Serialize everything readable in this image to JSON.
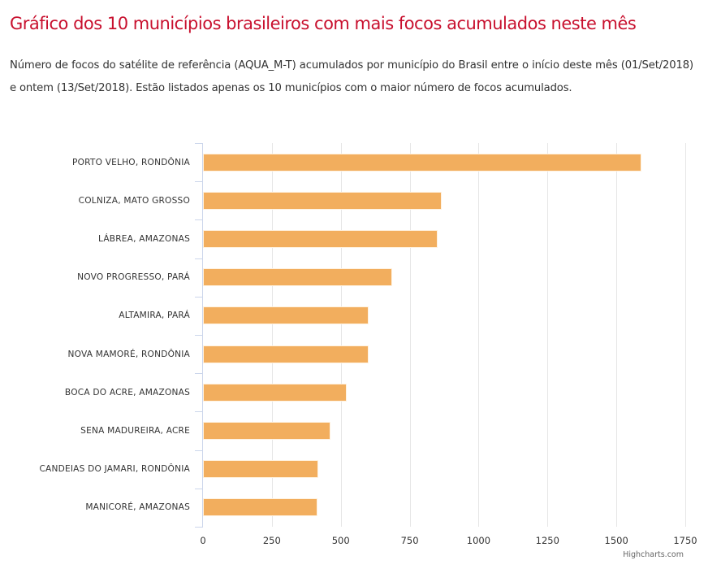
{
  "header": {
    "title": "Gráfico dos 10 municípios brasileiros com mais focos acumulados neste mês",
    "description": "Número de focos do satélite de referência (AQUA_M-T) acumulados por município do Brasil entre o início deste mês (01/Set/2018) e ontem (13/Set/2018). Estão listados apenas os 10 municípios com o maior número de focos acumulados."
  },
  "colors": {
    "title": "#C8102E",
    "bar": "#F2AE5E",
    "axis": "#CCD6EB",
    "grid": "#E6E6E6"
  },
  "chart_data": {
    "type": "bar",
    "orientation": "horizontal",
    "title": "Gráfico dos 10 municípios brasileiros com mais focos acumulados neste mês",
    "subtitle": "Número de focos do satélite de referência (AQUA_M-T) acumulados por município do Brasil entre o início deste mês (01/Set/2018) e ontem (13/Set/2018).",
    "categories": [
      "PORTO VELHO, RONDÔNIA",
      "COLNIZA, MATO GROSSO",
      "LÁBREA, AMAZONAS",
      "NOVO PROGRESSO, PARÁ",
      "ALTAMIRA, PARÁ",
      "NOVA MAMORÉ, RONDÔNIA",
      "BOCA DO ACRE, AMAZONAS",
      "SENA MADUREIRA, ACRE",
      "CANDEIAS DO JAMARI, RONDÔNIA",
      "MANICORÉ, AMAZONAS"
    ],
    "values": [
      1590,
      867,
      851,
      687,
      600,
      600,
      522,
      463,
      417,
      414
    ],
    "xlabel": "",
    "ylabel": "",
    "xlim": [
      0,
      1750
    ],
    "x_ticks": [
      "0",
      "250",
      "500",
      "750",
      "1000",
      "1250",
      "1500",
      "1750"
    ],
    "grid": true,
    "legend": "none",
    "credits": "Highcharts.com"
  }
}
